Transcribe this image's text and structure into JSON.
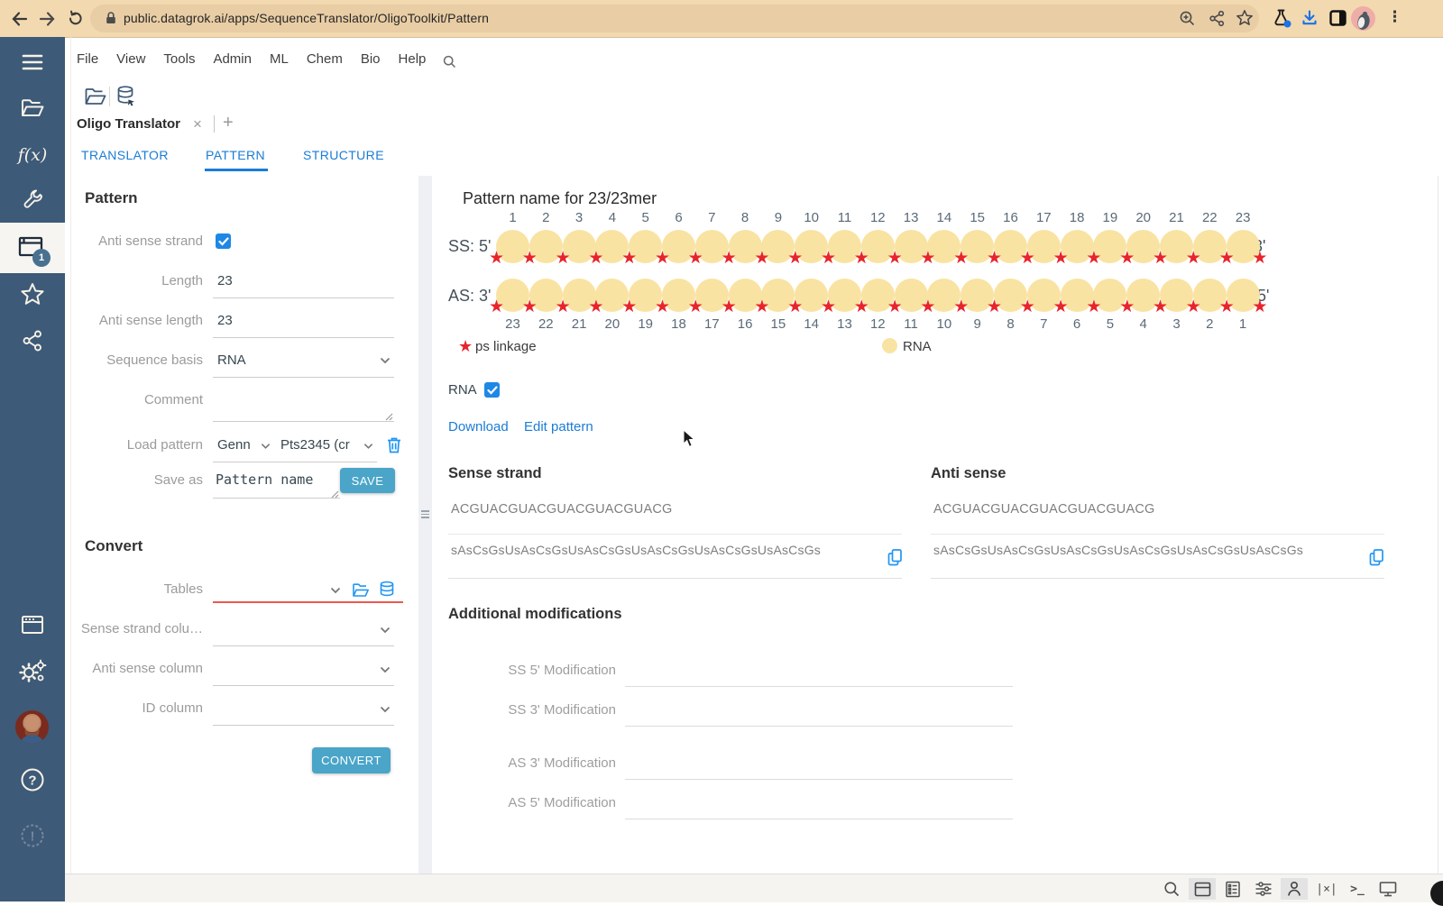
{
  "browser": {
    "url": "public.datagrok.ai/apps/SequenceTranslator/OligoToolkit/Pattern"
  },
  "menu": {
    "items": [
      "File",
      "View",
      "Tools",
      "Admin",
      "ML",
      "Chem",
      "Bio",
      "Help"
    ]
  },
  "workspace": {
    "doc_tab": "Oligo Translator",
    "close": "×",
    "add": "+"
  },
  "tabs": {
    "items": [
      "TRANSLATOR",
      "PATTERN",
      "STRUCTURE"
    ],
    "active": "PATTERN"
  },
  "pattern_form": {
    "heading": "Pattern",
    "anti_sense_strand_label": "Anti sense strand",
    "anti_sense_strand_checked": true,
    "length_label": "Length",
    "length_value": "23",
    "anti_sense_length_label": "Anti sense length",
    "anti_sense_length_value": "23",
    "sequence_basis_label": "Sequence basis",
    "sequence_basis_value": "RNA",
    "comment_label": "Comment",
    "comment_value": "",
    "load_pattern_label": "Load pattern",
    "load_pattern_user": "Genn",
    "load_pattern_name": "Pts2345 (cr",
    "save_as_label": "Save as",
    "save_as_value": "Pattern name",
    "save_button": "SAVE"
  },
  "convert_form": {
    "heading": "Convert",
    "tables_label": "Tables",
    "sense_col_label": "Sense strand colu…",
    "anti_col_label": "Anti sense column",
    "id_col_label": "ID column",
    "convert_button": "CONVERT"
  },
  "viz": {
    "title": "Pattern name for 23/23mer",
    "ss_label": "SS: 5'",
    "ss_end": "3'",
    "as_label": "AS: 3'",
    "as_end": "5'",
    "ss_numbers": [
      1,
      2,
      3,
      4,
      5,
      6,
      7,
      8,
      9,
      10,
      11,
      12,
      13,
      14,
      15,
      16,
      17,
      18,
      19,
      20,
      21,
      22,
      23
    ],
    "as_numbers": [
      23,
      22,
      21,
      20,
      19,
      18,
      17,
      16,
      15,
      14,
      13,
      12,
      11,
      10,
      9,
      8,
      7,
      6,
      5,
      4,
      3,
      2,
      1
    ],
    "nucleotide_color": "#f9e3a2",
    "star_color": "#e8242b",
    "legend": {
      "star": "ps linkage",
      "circle": "RNA"
    }
  },
  "controls": {
    "rna_label": "RNA",
    "rna_checked": true,
    "download_link": "Download",
    "edit_link": "Edit pattern"
  },
  "sense_strand": {
    "heading": "Sense strand",
    "sequence": "ACGUACGUACGUACGUACGUACG",
    "translated": "sAsCsGsUsAsCsGsUsAsCsGsUsAsCsGsUsAsCsGsUsAsCsGs"
  },
  "anti_sense": {
    "heading": "Anti sense",
    "sequence": "ACGUACGUACGUACGUACGUACG",
    "translated": "sAsCsGsUsAsCsGsUsAsCsGsUsAsCsGsUsAsCsGsUsAsCsGs"
  },
  "modifications": {
    "heading": "Additional modifications",
    "fields": [
      "SS 5' Modification",
      "SS 3' Modification",
      "AS 3' Modification",
      "AS 5' Modification"
    ]
  },
  "sidebar": {
    "badge": "1"
  }
}
